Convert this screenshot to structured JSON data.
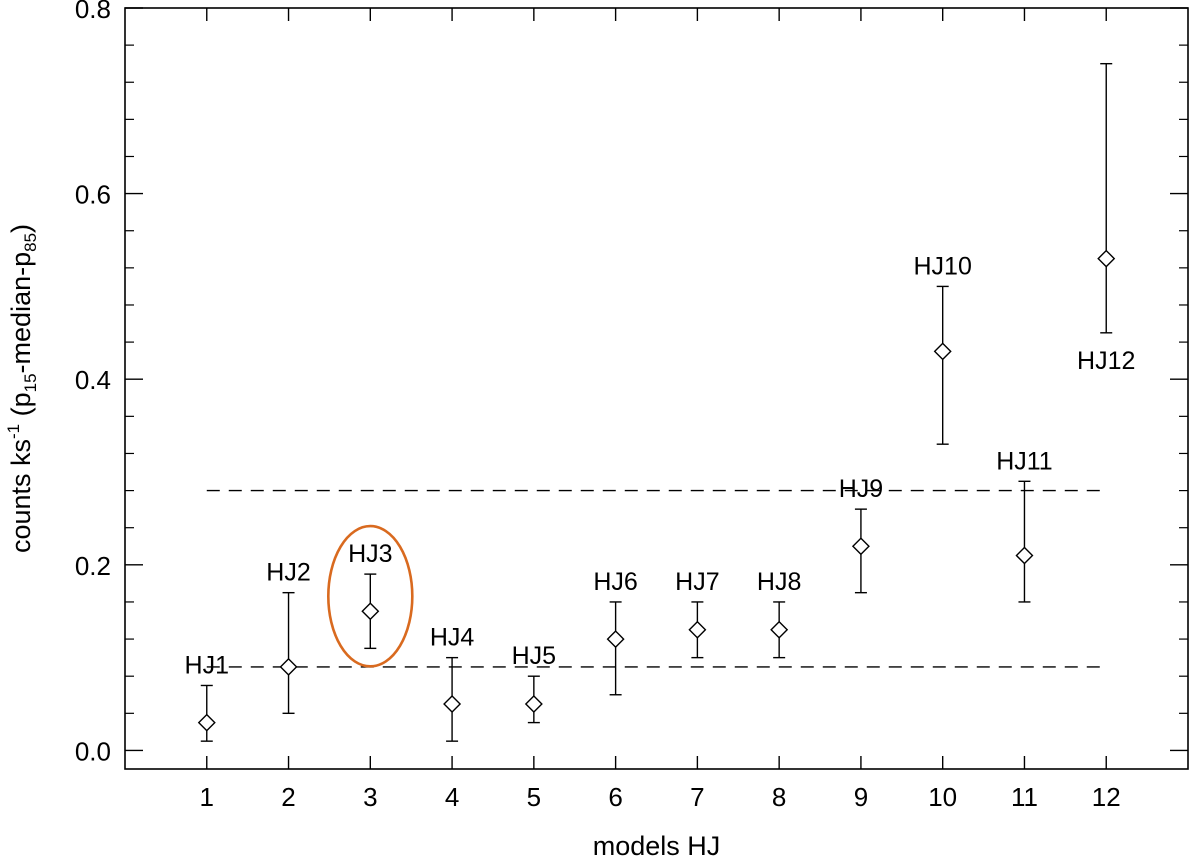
{
  "chart_data": {
    "type": "scatter",
    "xlabel": "models HJ",
    "ylabel": {
      "main": "counts ks",
      "exp": "-1",
      "open": " (p",
      "sub1": "15",
      "mid": "-median-p",
      "sub2": "85",
      "close": ")"
    },
    "xlim": [
      0,
      13
    ],
    "ylim": [
      -0.02,
      0.8
    ],
    "xticks": [
      1,
      2,
      3,
      4,
      5,
      6,
      7,
      8,
      9,
      10,
      11,
      12
    ],
    "xtick_labels": [
      "1",
      "2",
      "3",
      "4",
      "5",
      "6",
      "7",
      "8",
      "9",
      "10",
      "11",
      "12"
    ],
    "yticks": [
      0.0,
      0.2,
      0.4,
      0.6,
      0.8
    ],
    "ytick_labels": [
      "0.0",
      "0.2",
      "0.4",
      "0.6",
      "0.8"
    ],
    "marker": "diamond",
    "points": [
      {
        "x": 1,
        "y": 0.03,
        "low": 0.01,
        "high": 0.07,
        "label": "HJ1",
        "label_pos": "above"
      },
      {
        "x": 2,
        "y": 0.09,
        "low": 0.04,
        "high": 0.17,
        "label": "HJ2",
        "label_pos": "above"
      },
      {
        "x": 3,
        "y": 0.15,
        "low": 0.11,
        "high": 0.19,
        "label": "HJ3",
        "label_pos": "above",
        "highlighted": true
      },
      {
        "x": 4,
        "y": 0.05,
        "low": 0.01,
        "high": 0.1,
        "label": "HJ4",
        "label_pos": "above"
      },
      {
        "x": 5,
        "y": 0.05,
        "low": 0.03,
        "high": 0.08,
        "label": "HJ5",
        "label_pos": "above"
      },
      {
        "x": 6,
        "y": 0.12,
        "low": 0.06,
        "high": 0.16,
        "label": "HJ6",
        "label_pos": "above"
      },
      {
        "x": 7,
        "y": 0.13,
        "low": 0.1,
        "high": 0.16,
        "label": "HJ7",
        "label_pos": "above"
      },
      {
        "x": 8,
        "y": 0.13,
        "low": 0.1,
        "high": 0.16,
        "label": "HJ8",
        "label_pos": "above"
      },
      {
        "x": 9,
        "y": 0.22,
        "low": 0.17,
        "high": 0.26,
        "label": "HJ9",
        "label_pos": "above"
      },
      {
        "x": 10,
        "y": 0.43,
        "low": 0.33,
        "high": 0.5,
        "label": "HJ10",
        "label_pos": "above"
      },
      {
        "x": 11,
        "y": 0.21,
        "low": 0.16,
        "high": 0.29,
        "label": "HJ11",
        "label_pos": "above"
      },
      {
        "x": 12,
        "y": 0.53,
        "low": 0.45,
        "high": 0.74,
        "label": "HJ12",
        "label_pos": "below"
      }
    ],
    "reference_lines": [
      {
        "y": 0.28,
        "x_from": 1,
        "x_to": 12,
        "style": "dashed"
      },
      {
        "y": 0.09,
        "x_from": 1,
        "x_to": 12,
        "style": "dashed"
      }
    ],
    "highlight_color": "#d96a1f",
    "grid": false,
    "legend": "none"
  }
}
